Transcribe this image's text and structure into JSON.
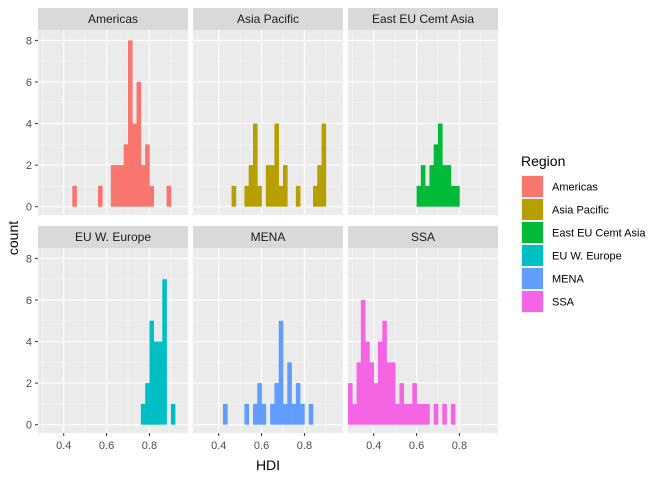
{
  "chart_data": {
    "type": "bar",
    "subtype": "faceted-histogram",
    "xlabel": "HDI",
    "ylabel": "count",
    "xlim": [
      0.28,
      0.98
    ],
    "ylim": [
      -0.4,
      8.5
    ],
    "x_ticks": [
      0.4,
      0.6,
      0.8
    ],
    "x_tick_labels": [
      "0.4",
      "0.6",
      "0.8"
    ],
    "y_ticks": [
      0,
      2,
      4,
      6,
      8
    ],
    "y_tick_labels": [
      "0",
      "2",
      "4",
      "6",
      "8"
    ],
    "bin_width": 0.02,
    "grid": true,
    "facet_layout": "2 rows x 3 columns",
    "legend": {
      "title": "Region",
      "position": "right",
      "entries": [
        {
          "label": "Americas",
          "color": "#F8766D"
        },
        {
          "label": "Asia Pacific",
          "color": "#B79F00"
        },
        {
          "label": "East EU Cemt Asia",
          "color": "#00BA38"
        },
        {
          "label": "EU W. Europe",
          "color": "#00BFC4"
        },
        {
          "label": "MENA",
          "color": "#619CFF"
        },
        {
          "label": "SSA",
          "color": "#F564E3"
        }
      ]
    },
    "panels": [
      {
        "name": "Americas",
        "color": "#F8766D",
        "bins": [
          [
            0.45,
            1
          ],
          [
            0.57,
            1
          ],
          [
            0.63,
            2
          ],
          [
            0.65,
            2
          ],
          [
            0.67,
            2
          ],
          [
            0.69,
            3
          ],
          [
            0.71,
            8
          ],
          [
            0.73,
            4
          ],
          [
            0.75,
            6
          ],
          [
            0.77,
            2
          ],
          [
            0.79,
            3
          ],
          [
            0.81,
            1
          ],
          [
            0.89,
            1
          ]
        ]
      },
      {
        "name": "Asia Pacific",
        "color": "#B79F00",
        "bins": [
          [
            0.47,
            1
          ],
          [
            0.53,
            1
          ],
          [
            0.55,
            2
          ],
          [
            0.57,
            4
          ],
          [
            0.59,
            1
          ],
          [
            0.63,
            2
          ],
          [
            0.65,
            2
          ],
          [
            0.67,
            4
          ],
          [
            0.69,
            1
          ],
          [
            0.71,
            2
          ],
          [
            0.77,
            1
          ],
          [
            0.85,
            1
          ],
          [
            0.87,
            2
          ],
          [
            0.89,
            4
          ]
        ]
      },
      {
        "name": "East EU Cemt Asia",
        "color": "#00BA38",
        "bins": [
          [
            0.61,
            1
          ],
          [
            0.63,
            2
          ],
          [
            0.65,
            1
          ],
          [
            0.67,
            2
          ],
          [
            0.69,
            3
          ],
          [
            0.71,
            4
          ],
          [
            0.73,
            2
          ],
          [
            0.75,
            2
          ],
          [
            0.77,
            1
          ],
          [
            0.79,
            1
          ]
        ]
      },
      {
        "name": "EU W. Europe",
        "color": "#00BFC4",
        "bins": [
          [
            0.77,
            1
          ],
          [
            0.79,
            2
          ],
          [
            0.81,
            5
          ],
          [
            0.83,
            4
          ],
          [
            0.85,
            4
          ],
          [
            0.87,
            7
          ],
          [
            0.91,
            1
          ]
        ]
      },
      {
        "name": "MENA",
        "color": "#619CFF",
        "bins": [
          [
            0.43,
            1
          ],
          [
            0.53,
            1
          ],
          [
            0.57,
            1
          ],
          [
            0.59,
            2
          ],
          [
            0.61,
            1
          ],
          [
            0.65,
            1
          ],
          [
            0.67,
            2
          ],
          [
            0.69,
            5
          ],
          [
            0.71,
            1
          ],
          [
            0.73,
            3
          ],
          [
            0.75,
            1
          ],
          [
            0.77,
            2
          ],
          [
            0.79,
            1
          ],
          [
            0.83,
            1
          ]
        ]
      },
      {
        "name": "SSA",
        "color": "#F564E3",
        "bins": [
          [
            0.29,
            2
          ],
          [
            0.31,
            1
          ],
          [
            0.33,
            3
          ],
          [
            0.35,
            6
          ],
          [
            0.37,
            4
          ],
          [
            0.39,
            3
          ],
          [
            0.41,
            2
          ],
          [
            0.43,
            4
          ],
          [
            0.45,
            5
          ],
          [
            0.47,
            3
          ],
          [
            0.49,
            3
          ],
          [
            0.51,
            1
          ],
          [
            0.53,
            2
          ],
          [
            0.55,
            1
          ],
          [
            0.57,
            1
          ],
          [
            0.59,
            2
          ],
          [
            0.61,
            1
          ],
          [
            0.63,
            1
          ],
          [
            0.65,
            1
          ],
          [
            0.69,
            1
          ],
          [
            0.73,
            1
          ],
          [
            0.77,
            1
          ]
        ]
      }
    ]
  }
}
